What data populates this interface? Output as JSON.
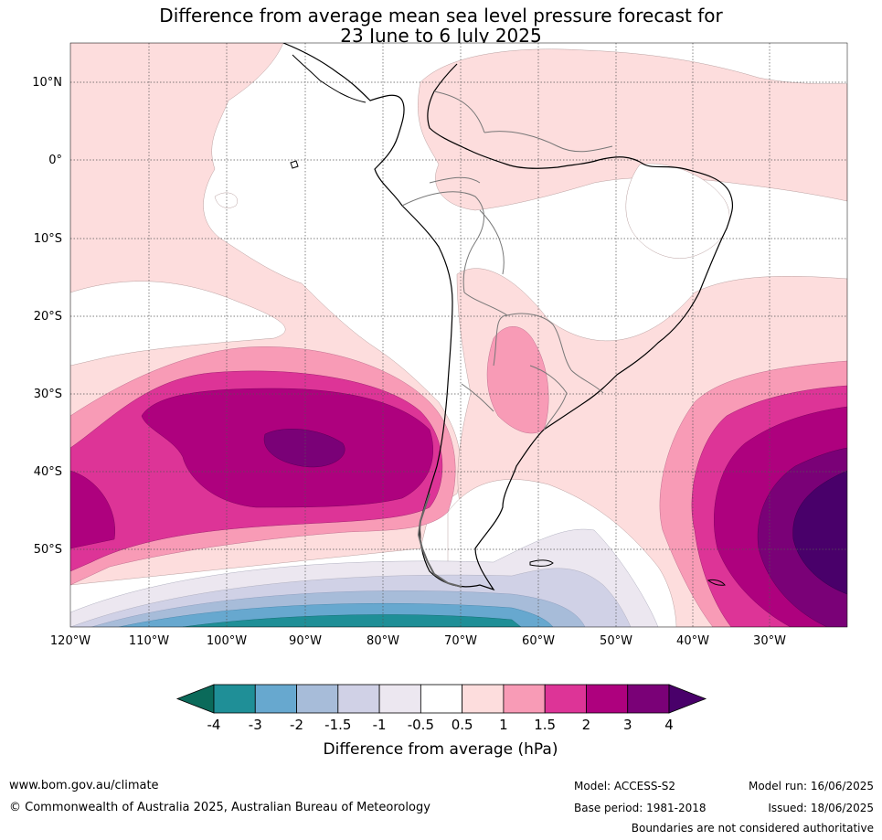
{
  "title_line1": "Difference from average mean sea level pressure forecast for",
  "title_line2": "23 June to 6 July 2025",
  "map": {
    "lat_ticks": [
      "10°N",
      "0°",
      "10°S",
      "20°S",
      "30°S",
      "40°S",
      "50°S"
    ],
    "lon_ticks": [
      "120°W",
      "110°W",
      "100°W",
      "90°W",
      "80°W",
      "70°W",
      "60°W",
      "50°W",
      "40°W",
      "30°W"
    ]
  },
  "colorbar": {
    "tick_labels": [
      "-4",
      "-3",
      "-2",
      "-1.5",
      "-1",
      "-0.5",
      "0.5",
      "1",
      "1.5",
      "2",
      "3",
      "4"
    ],
    "colors": [
      "#0b6a5a",
      "#1f8f97",
      "#67a8cf",
      "#a7bcd9",
      "#d0d1e6",
      "#ece7f0",
      "#ffffff",
      "#fddddd",
      "#f89bb6",
      "#dd3497",
      "#ae017e",
      "#7a0177",
      "#49006a"
    ],
    "label": "Difference from average (hPa)"
  },
  "footer": {
    "website": "www.bom.gov.au/climate",
    "copyright": "© Commonwealth of Australia 2025, Australian Bureau of Meteorology",
    "model": "Model: ACCESS-S2",
    "base_period": "Base period: 1981-2018",
    "model_run": "Model run: 16/06/2025",
    "issued": "Issued: 18/06/2025",
    "disclaimer": "Boundaries are not considered authoritative"
  }
}
